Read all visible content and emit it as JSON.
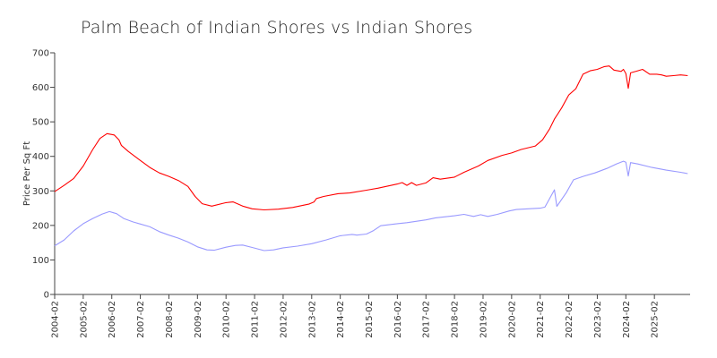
{
  "chart_data": {
    "type": "line",
    "title": "Palm Beach of Indian Shores vs Indian Shores",
    "ylabel": "Price Per Sq Ft",
    "xlabel": "",
    "ylim": [
      0,
      700
    ],
    "y_ticks": [
      0,
      100,
      200,
      300,
      400,
      500,
      600,
      700
    ],
    "x_range": [
      "2004-02",
      "2026-05"
    ],
    "x_ticks": [
      "2004-02",
      "2005-02",
      "2006-02",
      "2007-02",
      "2008-02",
      "2009-02",
      "2010-02",
      "2011-02",
      "2012-02",
      "2013-02",
      "2014-02",
      "2015-02",
      "2016-02",
      "2017-02",
      "2018-02",
      "2019-02",
      "2020-02",
      "2021-02",
      "2022-02",
      "2023-02",
      "2024-02",
      "2025-02"
    ],
    "legend": "none",
    "grid": false,
    "series": [
      {
        "color": "#ff0000",
        "points": [
          [
            "2004-02",
            298
          ],
          [
            "2004-06",
            316
          ],
          [
            "2004-10",
            336
          ],
          [
            "2005-02",
            372
          ],
          [
            "2005-06",
            420
          ],
          [
            "2005-09",
            452
          ],
          [
            "2005-12",
            466
          ],
          [
            "2006-03",
            462
          ],
          [
            "2006-05",
            448
          ],
          [
            "2006-06",
            432
          ],
          [
            "2006-09",
            414
          ],
          [
            "2007-02",
            388
          ],
          [
            "2007-06",
            368
          ],
          [
            "2007-10",
            352
          ],
          [
            "2008-02",
            342
          ],
          [
            "2008-06",
            330
          ],
          [
            "2008-10",
            313
          ],
          [
            "2009-01",
            284
          ],
          [
            "2009-04",
            263
          ],
          [
            "2009-08",
            256
          ],
          [
            "2010-02",
            266
          ],
          [
            "2010-05",
            268
          ],
          [
            "2010-09",
            256
          ],
          [
            "2011-01",
            248
          ],
          [
            "2011-06",
            245
          ],
          [
            "2011-12",
            247
          ],
          [
            "2012-06",
            252
          ],
          [
            "2013-01",
            262
          ],
          [
            "2013-03",
            268
          ],
          [
            "2013-04",
            278
          ],
          [
            "2013-07",
            284
          ],
          [
            "2014-01",
            292
          ],
          [
            "2014-06",
            294
          ],
          [
            "2015-01",
            302
          ],
          [
            "2015-06",
            308
          ],
          [
            "2016-02",
            320
          ],
          [
            "2016-04",
            324
          ],
          [
            "2016-06",
            316
          ],
          [
            "2016-08",
            324
          ],
          [
            "2016-10",
            316
          ],
          [
            "2017-02",
            323
          ],
          [
            "2017-05",
            338
          ],
          [
            "2017-08",
            334
          ],
          [
            "2018-02",
            340
          ],
          [
            "2018-06",
            354
          ],
          [
            "2018-12",
            372
          ],
          [
            "2019-04",
            388
          ],
          [
            "2019-10",
            403
          ],
          [
            "2020-02",
            410
          ],
          [
            "2020-06",
            420
          ],
          [
            "2020-12",
            430
          ],
          [
            "2021-03",
            448
          ],
          [
            "2021-06",
            480
          ],
          [
            "2021-08",
            508
          ],
          [
            "2021-11",
            540
          ],
          [
            "2022-02",
            578
          ],
          [
            "2022-05",
            596
          ],
          [
            "2022-08",
            638
          ],
          [
            "2022-11",
            648
          ],
          [
            "2023-02",
            652
          ],
          [
            "2023-05",
            660
          ],
          [
            "2023-07",
            662
          ],
          [
            "2023-09",
            650
          ],
          [
            "2023-12",
            646
          ],
          [
            "2024-01",
            652
          ],
          [
            "2024-02",
            640
          ],
          [
            "2024-03",
            597
          ],
          [
            "2024-04",
            642
          ],
          [
            "2024-07",
            648
          ],
          [
            "2024-09",
            652
          ],
          [
            "2024-12",
            638
          ],
          [
            "2025-03",
            638
          ],
          [
            "2025-05",
            636
          ],
          [
            "2025-07",
            632
          ],
          [
            "2025-10",
            634
          ],
          [
            "2026-01",
            636
          ],
          [
            "2026-04",
            634
          ]
        ]
      },
      {
        "color": "#9999ff",
        "points": [
          [
            "2004-02",
            141
          ],
          [
            "2004-06",
            158
          ],
          [
            "2004-10",
            184
          ],
          [
            "2005-02",
            205
          ],
          [
            "2005-06",
            220
          ],
          [
            "2005-10",
            233
          ],
          [
            "2006-01",
            240
          ],
          [
            "2006-04",
            234
          ],
          [
            "2006-07",
            220
          ],
          [
            "2006-11",
            210
          ],
          [
            "2007-02",
            204
          ],
          [
            "2007-06",
            196
          ],
          [
            "2007-10",
            182
          ],
          [
            "2008-02",
            172
          ],
          [
            "2008-06",
            163
          ],
          [
            "2008-10",
            152
          ],
          [
            "2009-02",
            138
          ],
          [
            "2009-06",
            129
          ],
          [
            "2009-09",
            128
          ],
          [
            "2010-02",
            137
          ],
          [
            "2010-06",
            142
          ],
          [
            "2010-09",
            143
          ],
          [
            "2011-01",
            136
          ],
          [
            "2011-06",
            127
          ],
          [
            "2011-10",
            129
          ],
          [
            "2012-02",
            135
          ],
          [
            "2012-08",
            140
          ],
          [
            "2013-02",
            147
          ],
          [
            "2013-08",
            158
          ],
          [
            "2014-02",
            170
          ],
          [
            "2014-07",
            174
          ],
          [
            "2014-09",
            172
          ],
          [
            "2015-01",
            175
          ],
          [
            "2015-04",
            185
          ],
          [
            "2015-07",
            199
          ],
          [
            "2016-02",
            205
          ],
          [
            "2016-06",
            208
          ],
          [
            "2017-02",
            216
          ],
          [
            "2017-06",
            222
          ],
          [
            "2018-02",
            228
          ],
          [
            "2018-06",
            232
          ],
          [
            "2018-10",
            226
          ],
          [
            "2019-01",
            231
          ],
          [
            "2019-04",
            226
          ],
          [
            "2019-08",
            232
          ],
          [
            "2020-01",
            242
          ],
          [
            "2020-04",
            246
          ],
          [
            "2020-09",
            248
          ],
          [
            "2021-02",
            250
          ],
          [
            "2021-04",
            253
          ],
          [
            "2021-08",
            303
          ],
          [
            "2021-09",
            255
          ],
          [
            "2022-01",
            295
          ],
          [
            "2022-04",
            332
          ],
          [
            "2022-08",
            342
          ],
          [
            "2023-01",
            352
          ],
          [
            "2023-06",
            365
          ],
          [
            "2023-10",
            378
          ],
          [
            "2024-01",
            386
          ],
          [
            "2024-02",
            383
          ],
          [
            "2024-03",
            343
          ],
          [
            "2024-04",
            382
          ],
          [
            "2024-07",
            378
          ],
          [
            "2025-01",
            368
          ],
          [
            "2025-07",
            360
          ],
          [
            "2026-01",
            354
          ],
          [
            "2026-04",
            350
          ]
        ]
      }
    ]
  }
}
